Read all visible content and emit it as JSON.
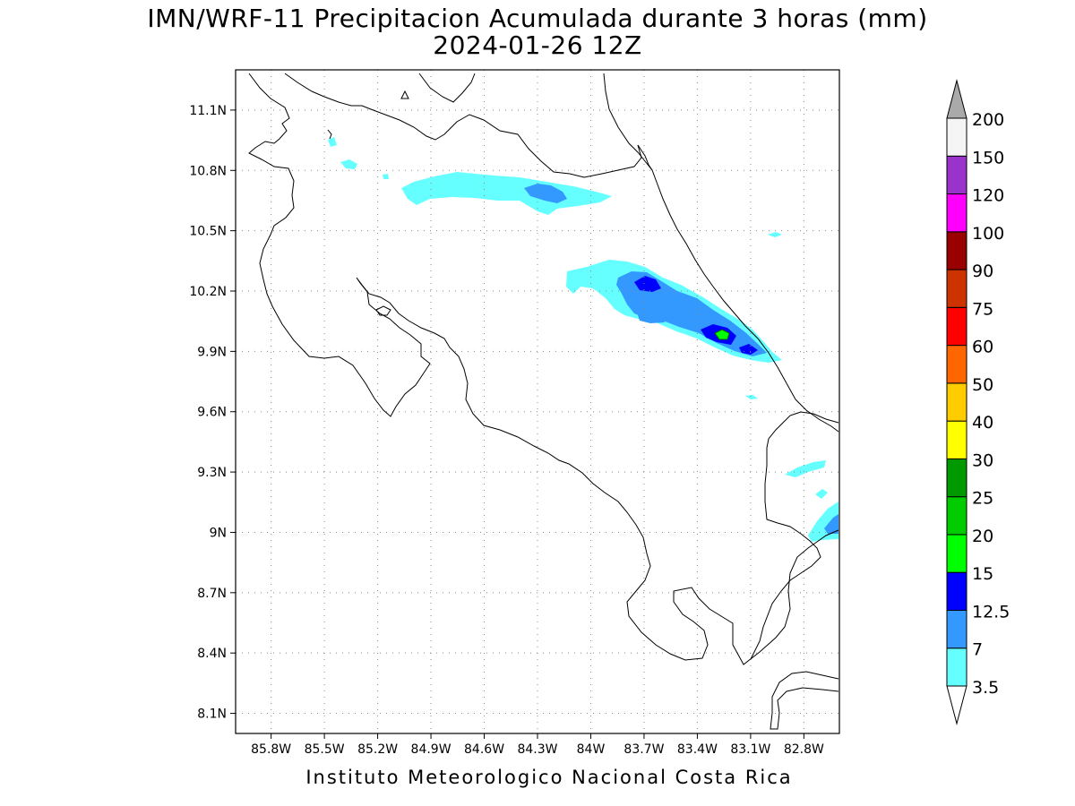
{
  "title": {
    "line1": "IMN/WRF-11 Precipitacion Acumulada durante 3 horas (mm)",
    "line2": "2024-01-26 12Z"
  },
  "footer": "Instituto Meteorologico Nacional Costa Rica",
  "map": {
    "lon_range": [
      -86.0,
      -82.6
    ],
    "lat_range": [
      8.0,
      11.3
    ],
    "lat_ticks": [
      {
        "value": 11.1,
        "label": "11.1N"
      },
      {
        "value": 10.8,
        "label": "10.8N"
      },
      {
        "value": 10.5,
        "label": "10.5N"
      },
      {
        "value": 10.2,
        "label": "10.2N"
      },
      {
        "value": 9.9,
        "label": "9.9N"
      },
      {
        "value": 9.6,
        "label": "9.6N"
      },
      {
        "value": 9.3,
        "label": "9.3N"
      },
      {
        "value": 9.0,
        "label": "9N"
      },
      {
        "value": 8.7,
        "label": "8.7N"
      },
      {
        "value": 8.4,
        "label": "8.4N"
      },
      {
        "value": 8.1,
        "label": "8.1N"
      }
    ],
    "lon_ticks": [
      {
        "value": -85.8,
        "label": "85.8W"
      },
      {
        "value": -85.5,
        "label": "85.5W"
      },
      {
        "value": -85.2,
        "label": "85.2W"
      },
      {
        "value": -84.9,
        "label": "84.9W"
      },
      {
        "value": -84.6,
        "label": "84.6W"
      },
      {
        "value": -84.3,
        "label": "84.3W"
      },
      {
        "value": -84.0,
        "label": "84W"
      },
      {
        "value": -83.7,
        "label": "83.7W"
      },
      {
        "value": -83.4,
        "label": "83.4W"
      },
      {
        "value": -83.1,
        "label": "83.1W"
      },
      {
        "value": -82.8,
        "label": "82.8W"
      }
    ],
    "grid": true,
    "grid_style": "dotted"
  },
  "colorbar": {
    "levels": [
      {
        "label": "3.5",
        "color": "#66ffff"
      },
      {
        "label": "7",
        "color": "#3399ff"
      },
      {
        "label": "12.5",
        "color": "#0000ff"
      },
      {
        "label": "15",
        "color": "#00ff00"
      },
      {
        "label": "20",
        "color": "#00cc00"
      },
      {
        "label": "25",
        "color": "#009900"
      },
      {
        "label": "30",
        "color": "#ffff00"
      },
      {
        "label": "40",
        "color": "#ffcc00"
      },
      {
        "label": "50",
        "color": "#ff6600"
      },
      {
        "label": "60",
        "color": "#ff0000"
      },
      {
        "label": "75",
        "color": "#cc3300"
      },
      {
        "label": "90",
        "color": "#990000"
      },
      {
        "label": "100",
        "color": "#ff00ff"
      },
      {
        "label": "120",
        "color": "#9933cc"
      },
      {
        "label": "150",
        "color": "#f5f5f5"
      },
      {
        "label": "200",
        "color": "#aaaaaa"
      }
    ],
    "low_end_color": "#ffffff",
    "high_end_color": "#aaaaaa"
  },
  "precip_areas": [
    {
      "name": "north-band",
      "level": "3.5",
      "color": "#66ffff"
    },
    {
      "name": "north-band-core",
      "level": "7",
      "color": "#3399ff"
    },
    {
      "name": "caribbean-band",
      "level": "3.5",
      "color": "#66ffff"
    },
    {
      "name": "caribbean-band-7",
      "level": "7",
      "color": "#3399ff"
    },
    {
      "name": "caribbean-band-12",
      "level": "12.5",
      "color": "#0000ff"
    },
    {
      "name": "caribbean-band-15",
      "level": "15",
      "color": "#00ff00"
    },
    {
      "name": "panama-area",
      "level": "3.5",
      "color": "#66ffff"
    },
    {
      "name": "panama-area-7",
      "level": "7",
      "color": "#3399ff"
    }
  ]
}
